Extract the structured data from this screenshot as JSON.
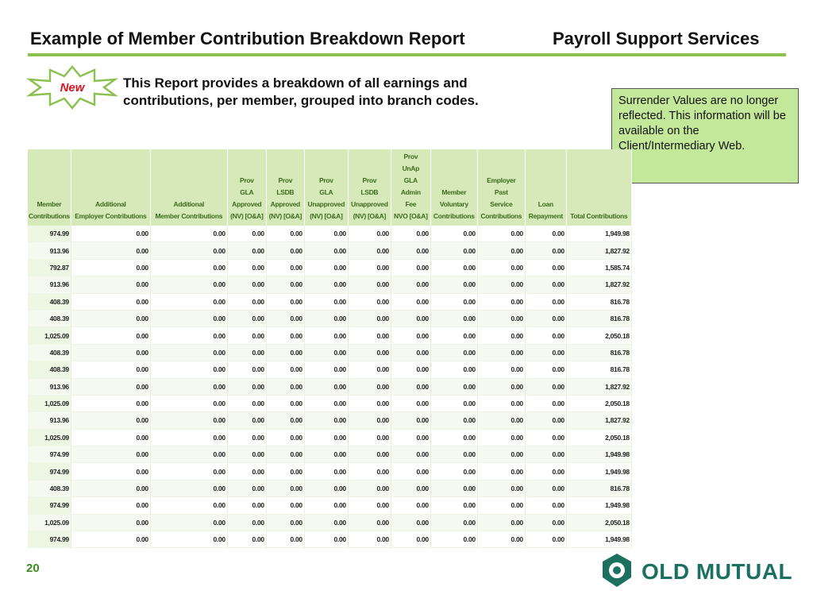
{
  "header": {
    "title": "Example of Member Contribution Breakdown Report",
    "section": "Payroll Support Services"
  },
  "badge": "New",
  "description": "This Report provides a breakdown of all earnings and contributions, per member, grouped into branch codes.",
  "note": "Surrender Values are no longer reflected. This information will be available on the Client/Intermediary Web.",
  "table": {
    "columns": [
      "Member\nContributions",
      "Additional\nEmployer Contributions",
      "Additional\nMember Contributions",
      "Prov\nGLA\nApproved\n(NV) [O&A]",
      "Prov\nLSDB\nApproved\n(NV) [O&A]",
      "Prov\nGLA\nUnapproved\n(NV) [O&A]",
      "Prov\nLSDB\nUnapproved\n(NV) [O&A]",
      "Prov\nUnAp\nGLA\nAdmin\nFee\nNVO [O&A]",
      "Member\nVoluntary\nContributions",
      "Employer\nPast\nService\nContributions",
      "Loan\nRepayment",
      "Total Contributions"
    ],
    "rows": [
      [
        "974.99",
        "0.00",
        "0.00",
        "0.00",
        "0.00",
        "0.00",
        "0.00",
        "0.00",
        "0.00",
        "0.00",
        "0.00",
        "1,949.98"
      ],
      [
        "913.96",
        "0.00",
        "0.00",
        "0.00",
        "0.00",
        "0.00",
        "0.00",
        "0.00",
        "0.00",
        "0.00",
        "0.00",
        "1,827.92"
      ],
      [
        "792.87",
        "0.00",
        "0.00",
        "0.00",
        "0.00",
        "0.00",
        "0.00",
        "0.00",
        "0.00",
        "0.00",
        "0.00",
        "1,585.74"
      ],
      [
        "913.96",
        "0.00",
        "0.00",
        "0.00",
        "0.00",
        "0.00",
        "0.00",
        "0.00",
        "0.00",
        "0.00",
        "0.00",
        "1,827.92"
      ],
      [
        "408.39",
        "0.00",
        "0.00",
        "0.00",
        "0.00",
        "0.00",
        "0.00",
        "0.00",
        "0.00",
        "0.00",
        "0.00",
        "816.78"
      ],
      [
        "408.39",
        "0.00",
        "0.00",
        "0.00",
        "0.00",
        "0.00",
        "0.00",
        "0.00",
        "0.00",
        "0.00",
        "0.00",
        "816.78"
      ],
      [
        "1,025.09",
        "0.00",
        "0.00",
        "0.00",
        "0.00",
        "0.00",
        "0.00",
        "0.00",
        "0.00",
        "0.00",
        "0.00",
        "2,050.18"
      ],
      [
        "408.39",
        "0.00",
        "0.00",
        "0.00",
        "0.00",
        "0.00",
        "0.00",
        "0.00",
        "0.00",
        "0.00",
        "0.00",
        "816.78"
      ],
      [
        "408.39",
        "0.00",
        "0.00",
        "0.00",
        "0.00",
        "0.00",
        "0.00",
        "0.00",
        "0.00",
        "0.00",
        "0.00",
        "816.78"
      ],
      [
        "913.96",
        "0.00",
        "0.00",
        "0.00",
        "0.00",
        "0.00",
        "0.00",
        "0.00",
        "0.00",
        "0.00",
        "0.00",
        "1,827.92"
      ],
      [
        "1,025.09",
        "0.00",
        "0.00",
        "0.00",
        "0.00",
        "0.00",
        "0.00",
        "0.00",
        "0.00",
        "0.00",
        "0.00",
        "2,050.18"
      ],
      [
        "913.96",
        "0.00",
        "0.00",
        "0.00",
        "0.00",
        "0.00",
        "0.00",
        "0.00",
        "0.00",
        "0.00",
        "0.00",
        "1,827.92"
      ],
      [
        "1,025.09",
        "0.00",
        "0.00",
        "0.00",
        "0.00",
        "0.00",
        "0.00",
        "0.00",
        "0.00",
        "0.00",
        "0.00",
        "2,050.18"
      ],
      [
        "974.99",
        "0.00",
        "0.00",
        "0.00",
        "0.00",
        "0.00",
        "0.00",
        "0.00",
        "0.00",
        "0.00",
        "0.00",
        "1,949.98"
      ],
      [
        "974.99",
        "0.00",
        "0.00",
        "0.00",
        "0.00",
        "0.00",
        "0.00",
        "0.00",
        "0.00",
        "0.00",
        "0.00",
        "1,949.98"
      ],
      [
        "408.39",
        "0.00",
        "0.00",
        "0.00",
        "0.00",
        "0.00",
        "0.00",
        "0.00",
        "0.00",
        "0.00",
        "0.00",
        "816.78"
      ],
      [
        "974.99",
        "0.00",
        "0.00",
        "0.00",
        "0.00",
        "0.00",
        "0.00",
        "0.00",
        "0.00",
        "0.00",
        "0.00",
        "1,949.98"
      ],
      [
        "1,025.09",
        "0.00",
        "0.00",
        "0.00",
        "0.00",
        "0.00",
        "0.00",
        "0.00",
        "0.00",
        "0.00",
        "0.00",
        "2,050.18"
      ],
      [
        "974.99",
        "0.00",
        "0.00",
        "0.00",
        "0.00",
        "0.00",
        "0.00",
        "0.00",
        "0.00",
        "0.00",
        "0.00",
        "1,949.98"
      ]
    ]
  },
  "footer": {
    "page": "20",
    "logo": "OLD MUTUAL"
  }
}
